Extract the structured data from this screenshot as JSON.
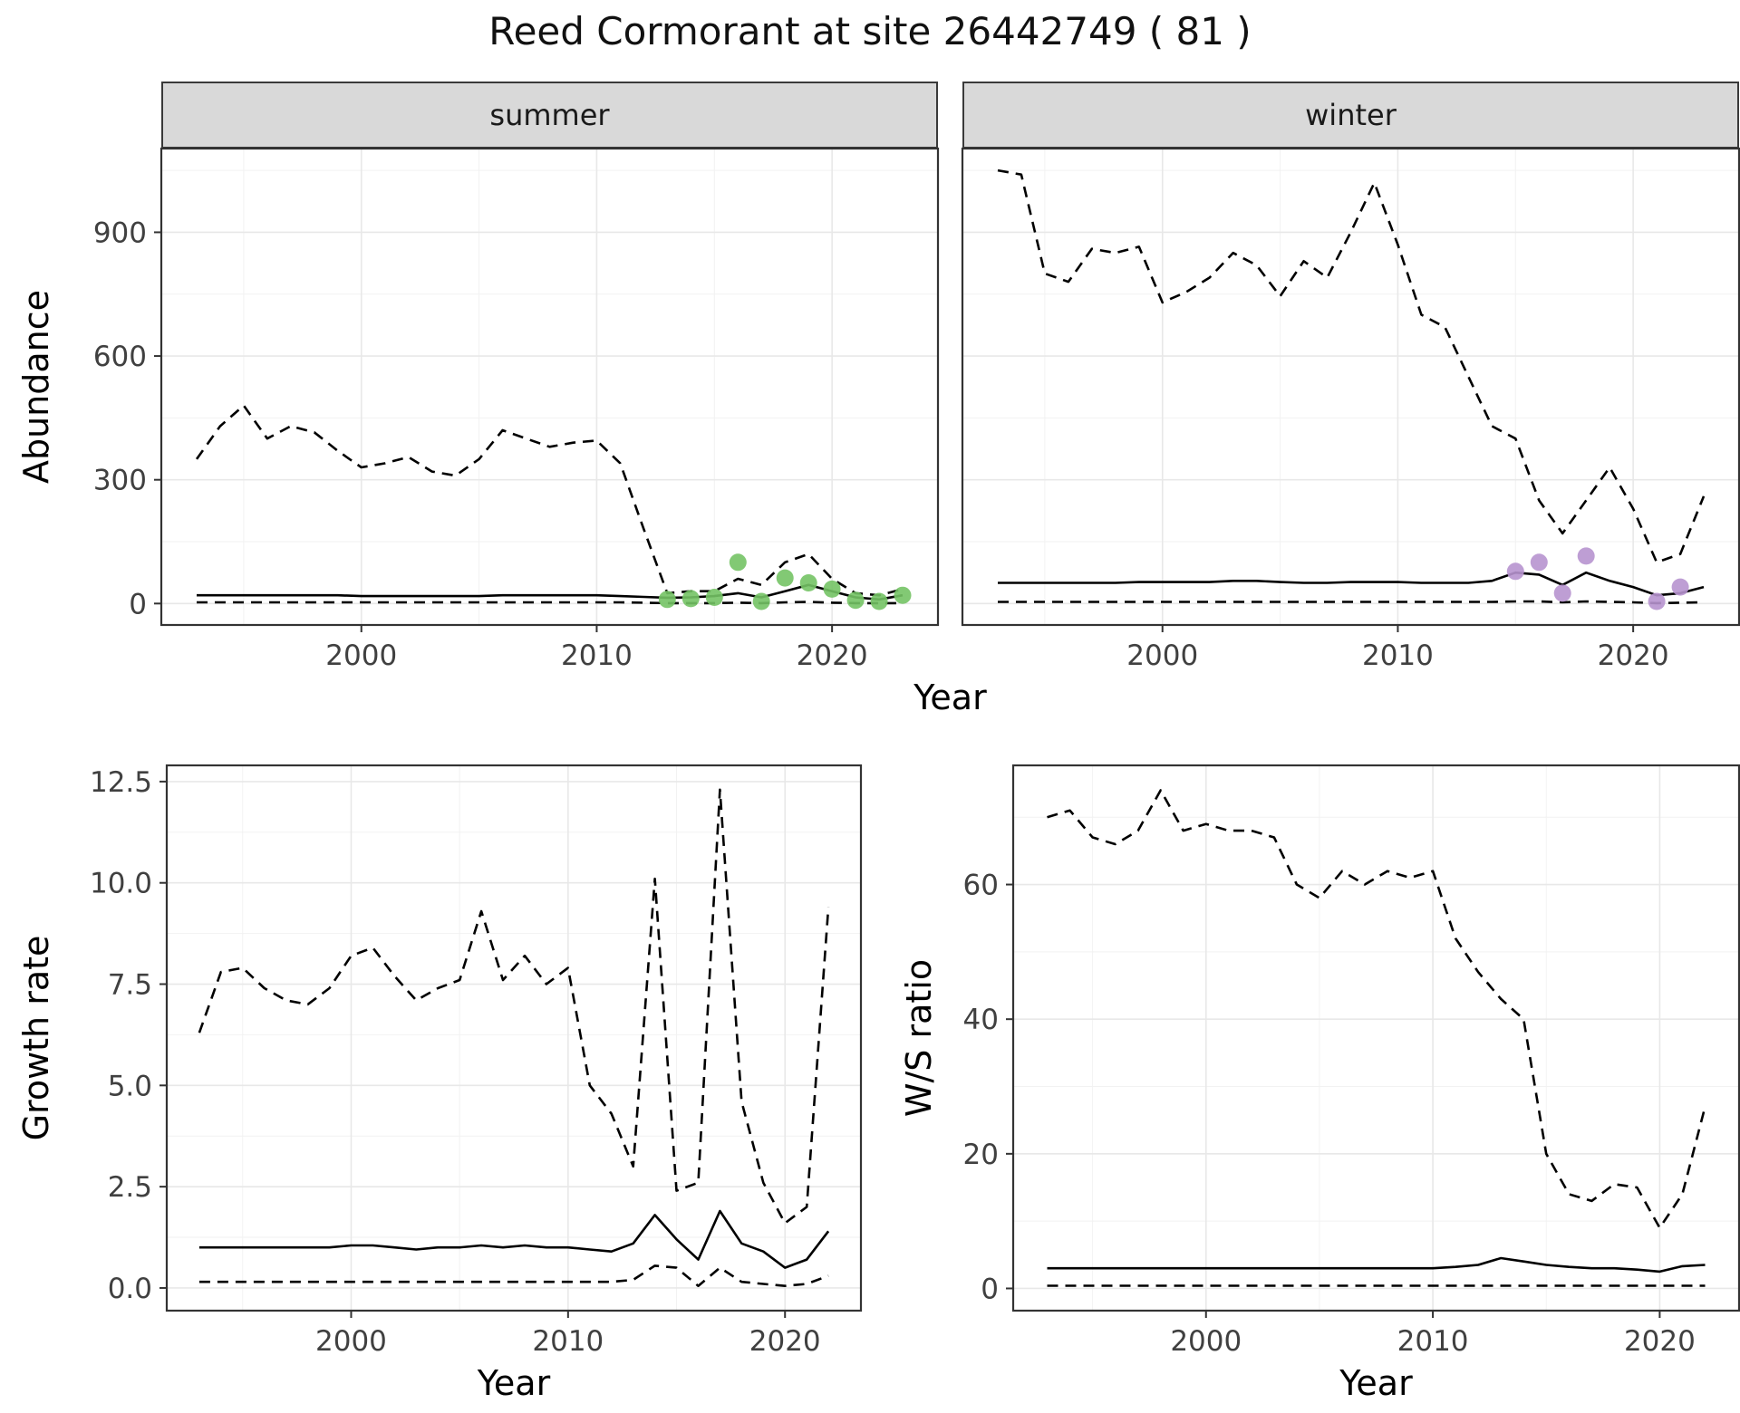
{
  "title": "Reed Cormorant at site 26442749 ( 81 )",
  "facets": {
    "summer": "summer",
    "winter": "winter"
  },
  "axis_labels": {
    "year": "Year",
    "abundance": "Abundance",
    "growth_rate": "Growth rate",
    "ws_ratio": "W/S ratio"
  },
  "colors": {
    "summer_point": "#74c365",
    "winter_point": "#b793cf",
    "line": "#000000",
    "strip_bg": "#d9d9d9",
    "panel_border": "#333333",
    "grid_major": "#e8e8e8",
    "grid_minor": "#f2f2f2",
    "tick_text": "#404040"
  },
  "chart_data": [
    {
      "id": "abundance-summer",
      "type": "line",
      "facet": "summer",
      "xlabel": "Year",
      "ylabel": "Abundance",
      "xlim": [
        1991.5,
        2024.5
      ],
      "ylim": [
        -52,
        1103
      ],
      "xticks": [
        2000,
        2010,
        2020
      ],
      "xtick_labels": [
        "2000",
        "2010",
        "2020"
      ],
      "yticks": [
        0,
        300,
        600,
        900
      ],
      "ytick_labels": [
        "0",
        "300",
        "600",
        "900"
      ],
      "show_y_axis": true,
      "x": [
        1993,
        1994,
        1995,
        1996,
        1997,
        1998,
        1999,
        2000,
        2001,
        2002,
        2003,
        2004,
        2005,
        2006,
        2007,
        2008,
        2009,
        2010,
        2011,
        2012,
        2013,
        2014,
        2015,
        2016,
        2017,
        2018,
        2019,
        2020,
        2021,
        2022,
        2023
      ],
      "series": [
        {
          "name": "upper-ci",
          "style": "dashed",
          "y": [
            350,
            430,
            480,
            400,
            430,
            415,
            370,
            330,
            340,
            355,
            320,
            310,
            350,
            420,
            400,
            380,
            390,
            395,
            340,
            180,
            25,
            30,
            30,
            60,
            45,
            100,
            120,
            60,
            25,
            20,
            35
          ]
        },
        {
          "name": "median",
          "style": "solid",
          "y": [
            20,
            20,
            20,
            20,
            20,
            20,
            20,
            18,
            18,
            18,
            18,
            18,
            18,
            20,
            20,
            20,
            20,
            20,
            18,
            16,
            14,
            15,
            18,
            25,
            15,
            30,
            45,
            30,
            15,
            10,
            20
          ]
        },
        {
          "name": "lower-ci",
          "style": "dashed",
          "y": [
            3,
            3,
            3,
            3,
            3,
            3,
            3,
            3,
            3,
            3,
            3,
            3,
            3,
            3,
            3,
            3,
            3,
            3,
            3,
            2,
            1,
            1,
            1,
            2,
            1,
            3,
            4,
            2,
            1,
            1,
            1
          ]
        }
      ],
      "points": {
        "name": "observed",
        "color_key": "summer_point",
        "x": [
          2013,
          2014,
          2015,
          2016,
          2017,
          2018,
          2019,
          2020,
          2021,
          2022,
          2023
        ],
        "y": [
          10,
          12,
          15,
          100,
          5,
          62,
          50,
          35,
          8,
          5,
          20
        ]
      }
    },
    {
      "id": "abundance-winter",
      "type": "line",
      "facet": "winter",
      "xlabel": "Year",
      "ylabel": "Abundance",
      "xlim": [
        1991.5,
        2024.5
      ],
      "ylim": [
        -52,
        1103
      ],
      "xticks": [
        2000,
        2010,
        2020
      ],
      "xtick_labels": [
        "2000",
        "2010",
        "2020"
      ],
      "yticks": [
        0,
        300,
        600,
        900
      ],
      "ytick_labels": [
        "0",
        "300",
        "600",
        "900"
      ],
      "show_y_axis": false,
      "x": [
        1993,
        1994,
        1995,
        1996,
        1997,
        1998,
        1999,
        2000,
        2001,
        2002,
        2003,
        2004,
        2005,
        2006,
        2007,
        2008,
        2009,
        2010,
        2011,
        2012,
        2013,
        2014,
        2015,
        2016,
        2017,
        2018,
        2019,
        2020,
        2021,
        2022,
        2023
      ],
      "series": [
        {
          "name": "upper-ci",
          "style": "dashed",
          "y": [
            1050,
            1040,
            800,
            780,
            860,
            850,
            865,
            730,
            755,
            790,
            850,
            820,
            745,
            830,
            790,
            900,
            1020,
            870,
            700,
            670,
            550,
            430,
            400,
            250,
            170,
            250,
            330,
            230,
            100,
            120,
            260
          ]
        },
        {
          "name": "median",
          "style": "solid",
          "y": [
            50,
            50,
            50,
            50,
            50,
            50,
            52,
            52,
            52,
            52,
            55,
            55,
            52,
            50,
            50,
            52,
            52,
            52,
            50,
            50,
            50,
            55,
            75,
            70,
            45,
            75,
            55,
            40,
            20,
            25,
            40
          ]
        },
        {
          "name": "lower-ci",
          "style": "dashed",
          "y": [
            4,
            4,
            4,
            4,
            4,
            4,
            4,
            4,
            4,
            4,
            4,
            4,
            4,
            4,
            4,
            4,
            4,
            4,
            4,
            4,
            4,
            4,
            5,
            5,
            3,
            5,
            4,
            3,
            1,
            2,
            3
          ]
        }
      ],
      "points": {
        "name": "observed",
        "color_key": "winter_point",
        "x": [
          2015,
          2016,
          2017,
          2018,
          2021,
          2022
        ],
        "y": [
          78,
          100,
          25,
          115,
          5,
          40
        ]
      }
    },
    {
      "id": "growth-rate",
      "type": "line",
      "facet": null,
      "xlabel": "Year",
      "ylabel": "Growth rate",
      "xlim": [
        1991.5,
        2023.5
      ],
      "ylim": [
        -0.56,
        12.9
      ],
      "xticks": [
        2000,
        2010,
        2020
      ],
      "xtick_labels": [
        "2000",
        "2010",
        "2020"
      ],
      "yticks": [
        0,
        2.5,
        5,
        7.5,
        10,
        12.5
      ],
      "ytick_labels": [
        "0.0",
        "2.5",
        "5.0",
        "7.5",
        "10.0",
        "12.5"
      ],
      "show_y_axis": true,
      "x": [
        1993,
        1994,
        1995,
        1996,
        1997,
        1998,
        1999,
        2000,
        2001,
        2002,
        2003,
        2004,
        2005,
        2006,
        2007,
        2008,
        2009,
        2010,
        2011,
        2012,
        2013,
        2014,
        2015,
        2016,
        2017,
        2018,
        2019,
        2020,
        2021,
        2022
      ],
      "series": [
        {
          "name": "upper-ci",
          "style": "dashed",
          "y": [
            6.3,
            7.8,
            7.9,
            7.4,
            7.1,
            7.0,
            7.4,
            8.2,
            8.4,
            7.7,
            7.1,
            7.4,
            7.6,
            9.3,
            7.6,
            8.2,
            7.5,
            7.9,
            5.0,
            4.3,
            3.0,
            10.1,
            2.4,
            2.6,
            12.3,
            4.6,
            2.6,
            1.6,
            2.0,
            9.4
          ]
        },
        {
          "name": "median",
          "style": "solid",
          "y": [
            1.0,
            1.0,
            1.0,
            1.0,
            1.0,
            1.0,
            1.0,
            1.05,
            1.05,
            1.0,
            0.95,
            1.0,
            1.0,
            1.05,
            1.0,
            1.05,
            1.0,
            1.0,
            0.95,
            0.9,
            1.1,
            1.8,
            1.2,
            0.7,
            1.9,
            1.1,
            0.9,
            0.5,
            0.7,
            1.4
          ]
        },
        {
          "name": "lower-ci",
          "style": "dashed",
          "y": [
            0.15,
            0.15,
            0.15,
            0.15,
            0.15,
            0.15,
            0.15,
            0.15,
            0.15,
            0.15,
            0.15,
            0.15,
            0.15,
            0.15,
            0.15,
            0.15,
            0.15,
            0.15,
            0.15,
            0.15,
            0.2,
            0.55,
            0.5,
            0.05,
            0.5,
            0.15,
            0.1,
            0.05,
            0.1,
            0.3
          ]
        }
      ],
      "points": null
    },
    {
      "id": "ws-ratio",
      "type": "line",
      "facet": null,
      "xlabel": "Year",
      "ylabel": "W/S ratio",
      "xlim": [
        1991.5,
        2023.5
      ],
      "ylim": [
        -3.3,
        77.7
      ],
      "xticks": [
        2000,
        2010,
        2020
      ],
      "xtick_labels": [
        "2000",
        "2010",
        "2020"
      ],
      "yticks": [
        0,
        20,
        40,
        60
      ],
      "ytick_labels": [
        "0",
        "20",
        "40",
        "60"
      ],
      "show_y_axis": true,
      "x": [
        1993,
        1994,
        1995,
        1996,
        1997,
        1998,
        1999,
        2000,
        2001,
        2002,
        2003,
        2004,
        2005,
        2006,
        2007,
        2008,
        2009,
        2010,
        2011,
        2012,
        2013,
        2014,
        2015,
        2016,
        2017,
        2018,
        2019,
        2020,
        2021,
        2022
      ],
      "series": [
        {
          "name": "upper-ci",
          "style": "dashed",
          "y": [
            70,
            71,
            67,
            66,
            68,
            74,
            68,
            69,
            68,
            68,
            67,
            60,
            58,
            62,
            60,
            62,
            61,
            62,
            52,
            47,
            43,
            40,
            20,
            14,
            13,
            15.5,
            15,
            9,
            14,
            27
          ]
        },
        {
          "name": "median",
          "style": "solid",
          "y": [
            3,
            3,
            3,
            3,
            3,
            3,
            3,
            3,
            3,
            3,
            3,
            3,
            3,
            3,
            3,
            3,
            3,
            3,
            3.2,
            3.5,
            4.5,
            4.0,
            3.5,
            3.2,
            3.0,
            3.0,
            2.8,
            2.5,
            3.3,
            3.5
          ]
        },
        {
          "name": "lower-ci",
          "style": "dashed",
          "y": [
            0.4,
            0.4,
            0.4,
            0.4,
            0.4,
            0.4,
            0.4,
            0.4,
            0.4,
            0.4,
            0.4,
            0.4,
            0.4,
            0.4,
            0.4,
            0.4,
            0.4,
            0.4,
            0.4,
            0.4,
            0.4,
            0.4,
            0.4,
            0.4,
            0.4,
            0.4,
            0.4,
            0.4,
            0.4,
            0.4
          ]
        }
      ],
      "points": null
    }
  ]
}
